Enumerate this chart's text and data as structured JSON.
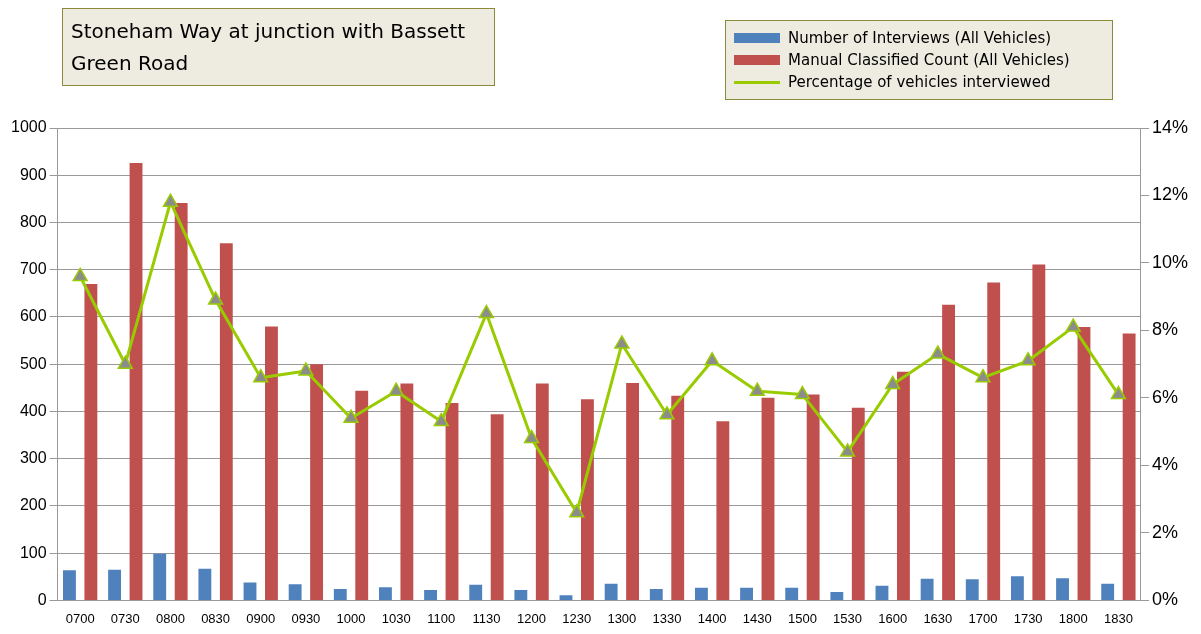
{
  "chart_data": {
    "type": "bar",
    "title": "Stoneham Way at junction with Bassett Green Road",
    "categories": [
      "0700",
      "0730",
      "0800",
      "0830",
      "0900",
      "0930",
      "1000",
      "1030",
      "1100",
      "1130",
      "1200",
      "1230",
      "1300",
      "1330",
      "1400",
      "1430",
      "1500",
      "1530",
      "1600",
      "1630",
      "1700",
      "1730",
      "1800",
      "1830"
    ],
    "series": [
      {
        "name": "Number of Interviews (All Vehicles)",
        "color": "#4f81bd",
        "values": [
          64,
          65,
          99,
          67,
          38,
          34,
          24,
          28,
          22,
          33,
          22,
          11,
          35,
          24,
          27,
          27,
          27,
          18,
          31,
          46,
          45,
          51,
          47,
          35
        ]
      },
      {
        "name": "Manual Classified Count (All Vehicles)",
        "color": "#c0504d",
        "values": [
          670,
          926,
          841,
          756,
          580,
          500,
          444,
          459,
          418,
          394,
          459,
          426,
          460,
          433,
          379,
          429,
          436,
          408,
          484,
          626,
          673,
          711,
          579,
          565
        ]
      },
      {
        "name": "Percentage of vehicles interviewed",
        "type": "line",
        "axis": "y2",
        "color": "#99cc00",
        "marker": "triangle",
        "values": [
          9.6,
          7.0,
          11.8,
          8.9,
          6.6,
          6.8,
          5.4,
          6.2,
          5.3,
          8.5,
          4.8,
          2.6,
          7.6,
          5.5,
          7.1,
          6.2,
          6.1,
          4.4,
          6.4,
          7.3,
          6.6,
          7.1,
          8.1,
          6.1
        ]
      }
    ],
    "ylim": [
      0,
      1000
    ],
    "yticks": [
      0,
      100,
      200,
      300,
      400,
      500,
      600,
      700,
      800,
      900,
      1000
    ],
    "y2lim": [
      0,
      14
    ],
    "y2ticks": [
      {
        "value": 0,
        "label": "0%"
      },
      {
        "value": 2,
        "label": "2%"
      },
      {
        "value": 4,
        "label": "4%"
      },
      {
        "value": 6,
        "label": "6%"
      },
      {
        "value": 8,
        "label": "8%"
      },
      {
        "value": 10,
        "label": "10%"
      },
      {
        "value": 12,
        "label": "12%"
      },
      {
        "value": 14,
        "label": "14%"
      }
    ],
    "grid": "y",
    "legend": "top right"
  }
}
